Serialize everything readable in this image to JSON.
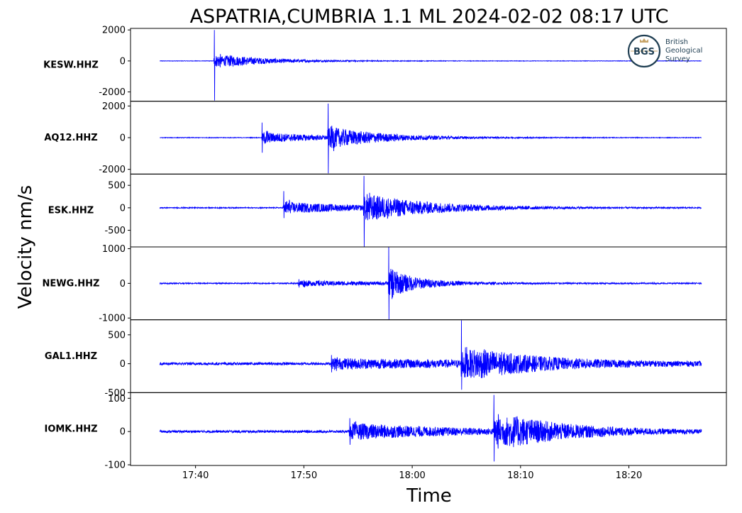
{
  "chart_data": {
    "type": "line",
    "title": "ASPATRIA,CUMBRIA 1.1 ML   2024-02-02 08:17 UTC",
    "xlabel": "Time",
    "ylabel": "Velocity nm/s",
    "x_range": [
      "17:34",
      "18:29"
    ],
    "x_ticks": [
      "17:40",
      "17:50",
      "18:00",
      "18:10",
      "18:20"
    ],
    "trace_color": "#0000ff",
    "trace_start": "17:36.7",
    "trace_end": "18:26.7",
    "panels": [
      {
        "station": "KESW.HHZ",
        "ylim": [
          -2600,
          2100
        ],
        "yticks": [
          {
            "v": 2000,
            "label": "2000"
          },
          {
            "v": 0,
            "label": "0"
          },
          {
            "v": -2000,
            "label": "-2000"
          }
        ],
        "noise": 15,
        "arrivals": [
          {
            "t": 41.7,
            "amp": 2000,
            "min": -2550,
            "coda": 550,
            "decay": 4.5,
            "sdecay": 2.5
          }
        ]
      },
      {
        "station": "AQ12.HHZ",
        "ylim": [
          -2300,
          2300
        ],
        "yticks": [
          {
            "v": 2000,
            "label": "2000"
          },
          {
            "v": 0,
            "label": "0"
          },
          {
            "v": -2000,
            "label": "-2000"
          }
        ],
        "noise": 20,
        "arrivals": [
          {
            "t": 46.1,
            "amp": 950,
            "min": -950,
            "coda": 380,
            "decay": 6,
            "sdecay": 0.8
          },
          {
            "t": 52.2,
            "amp": 2150,
            "min": -2250,
            "coda": 650,
            "decay": 5,
            "sdecay": 1.2
          }
        ]
      },
      {
        "station": "ESK.HHZ",
        "ylim": [
          -870,
          750
        ],
        "yticks": [
          {
            "v": 500,
            "label": "500"
          },
          {
            "v": 0,
            "label": "0"
          },
          {
            "v": -500,
            "label": "-500"
          }
        ],
        "noise": 12,
        "arrivals": [
          {
            "t": 48.1,
            "amp": 370,
            "min": -230,
            "coda": 140,
            "decay": 8,
            "sdecay": 0.8
          },
          {
            "t": 55.5,
            "amp": 710,
            "min": -870,
            "coda": 300,
            "decay": 6,
            "sdecay": 1.5
          }
        ]
      },
      {
        "station": "NEWG.HHZ",
        "ylim": [
          -1050,
          1050
        ],
        "yticks": [
          {
            "v": 1000,
            "label": "1000"
          },
          {
            "v": 0,
            "label": "0"
          },
          {
            "v": -1000,
            "label": "-1000"
          }
        ],
        "noise": 18,
        "arrivals": [
          {
            "t": 49.5,
            "amp": 120,
            "min": -120,
            "coda": 80,
            "decay": 10,
            "sdecay": 1
          },
          {
            "t": 57.8,
            "amp": 1100,
            "min": -1050,
            "coda": 450,
            "decay": 2.5,
            "sdecay": 1
          }
        ]
      },
      {
        "station": "GAL1.HHZ",
        "ylim": [
          -500,
          760
        ],
        "yticks": [
          {
            "v": 500,
            "label": "500"
          },
          {
            "v": 0,
            "label": "0"
          },
          {
            "v": -500,
            "label": "-500"
          }
        ],
        "noise": 25,
        "arrivals": [
          {
            "t": 52.5,
            "amp": 150,
            "min": -150,
            "coda": 90,
            "decay": 20,
            "sdecay": 1
          },
          {
            "t": 64.5,
            "amp": 750,
            "min": -450,
            "coda": 300,
            "decay": 6,
            "sdecay": 2.5
          }
        ]
      },
      {
        "station": "IOMK.HHZ",
        "ylim": [
          -102,
          117
        ],
        "yticks": [
          {
            "v": 100,
            "label": "100"
          },
          {
            "v": 0,
            "label": "0"
          },
          {
            "v": -100,
            "label": "-100"
          }
        ],
        "noise": 4,
        "arrivals": [
          {
            "t": 54.2,
            "amp": 40,
            "min": -40,
            "coda": 26,
            "decay": 10,
            "sdecay": 1.5
          },
          {
            "t": 67.5,
            "amp": 110,
            "min": -90,
            "coda": 60,
            "decay": 6,
            "sdecay": 3
          }
        ]
      }
    ]
  },
  "logo": {
    "abbr": "BGS",
    "line1": "British",
    "line2": "Geological",
    "line3": "Survey"
  }
}
